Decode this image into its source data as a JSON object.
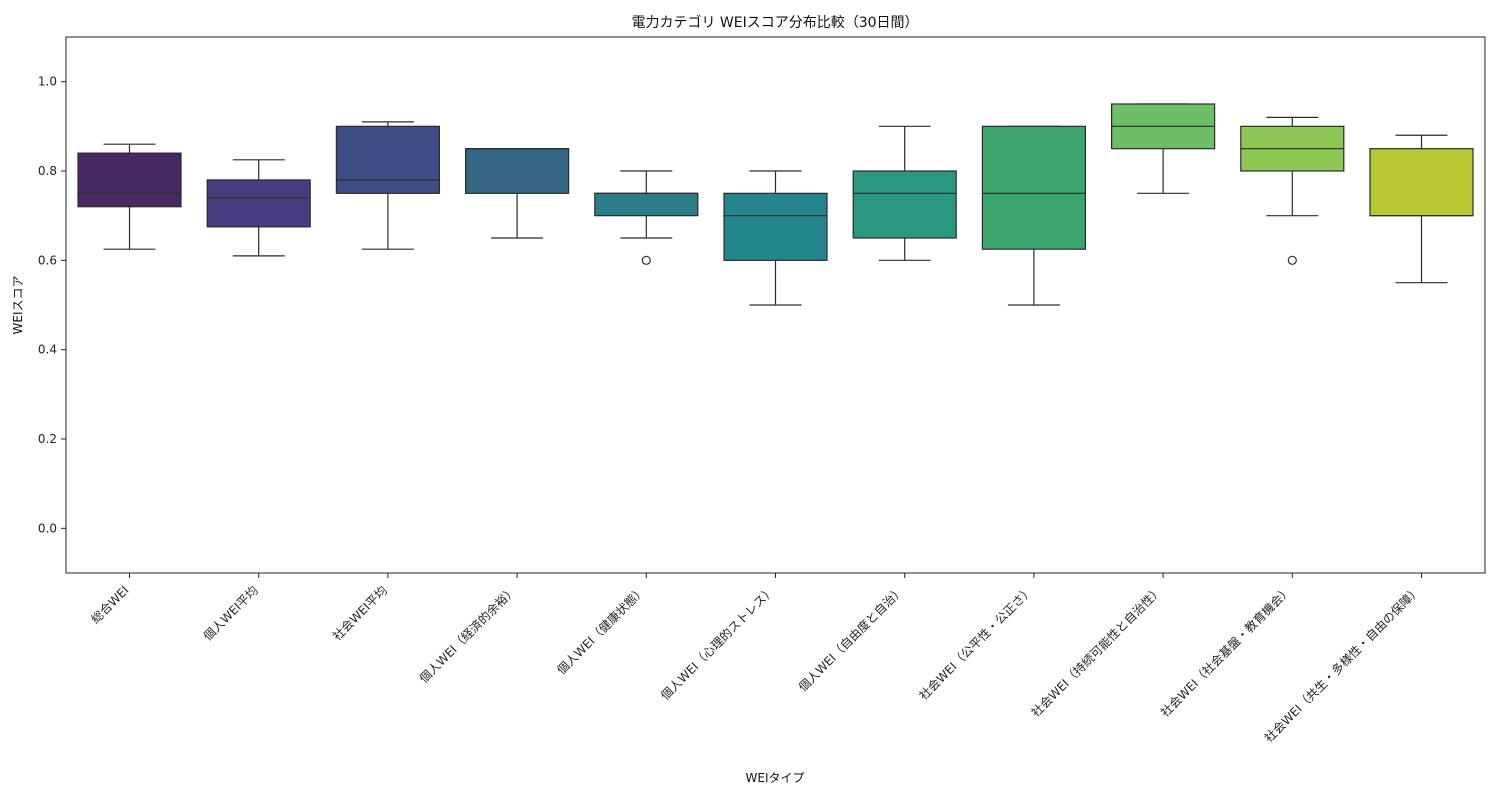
{
  "chart_data": {
    "type": "box",
    "title": "電力カテゴリ WEIスコア分布比較（30日間）",
    "xlabel": "WEIタイプ",
    "ylabel": "WEIスコア",
    "ylim": [
      -0.1,
      1.1
    ],
    "yticks": [
      0.0,
      0.2,
      0.4,
      0.6,
      0.8,
      1.0
    ],
    "ytick_labels": [
      "0.0",
      "0.2",
      "0.4",
      "0.6",
      "0.8",
      "1.0"
    ],
    "grid": false,
    "categories": [
      "総合WEI",
      "個人WEI平均",
      "社会WEI平均",
      "個人WEI（経済的余裕）",
      "個人WEI（健康状態）",
      "個人WEI（心理的ストレス）",
      "個人WEI（自由度と自治）",
      "社会WEI（公平性・公正さ）",
      "社会WEI（持続可能性と自治性）",
      "社会WEI（社会基盤・教育機会）",
      "社会WEI（共生・多様性・自由の保障）"
    ],
    "boxes": [
      {
        "whisker_low": 0.625,
        "q1": 0.72,
        "median": 0.75,
        "q3": 0.84,
        "whisker_high": 0.86,
        "outliers": []
      },
      {
        "whisker_low": 0.61,
        "q1": 0.675,
        "median": 0.74,
        "q3": 0.78,
        "whisker_high": 0.825,
        "outliers": []
      },
      {
        "whisker_low": 0.625,
        "q1": 0.75,
        "median": 0.78,
        "q3": 0.9,
        "whisker_high": 0.91,
        "outliers": []
      },
      {
        "whisker_low": 0.65,
        "q1": 0.75,
        "median": 0.85,
        "q3": 0.85,
        "whisker_high": 0.85,
        "outliers": []
      },
      {
        "whisker_low": 0.65,
        "q1": 0.7,
        "median": 0.75,
        "q3": 0.75,
        "whisker_high": 0.8,
        "outliers": [
          0.6
        ]
      },
      {
        "whisker_low": 0.5,
        "q1": 0.6,
        "median": 0.7,
        "q3": 0.75,
        "whisker_high": 0.8,
        "outliers": []
      },
      {
        "whisker_low": 0.6,
        "q1": 0.65,
        "median": 0.75,
        "q3": 0.8,
        "whisker_high": 0.9,
        "outliers": []
      },
      {
        "whisker_low": 0.5,
        "q1": 0.625,
        "median": 0.75,
        "q3": 0.9,
        "whisker_high": 0.9,
        "outliers": []
      },
      {
        "whisker_low": 0.75,
        "q1": 0.85,
        "median": 0.9,
        "q3": 0.95,
        "whisker_high": 0.95,
        "outliers": []
      },
      {
        "whisker_low": 0.7,
        "q1": 0.8,
        "median": 0.85,
        "q3": 0.9,
        "whisker_high": 0.92,
        "outliers": [
          0.6
        ]
      },
      {
        "whisker_low": 0.55,
        "q1": 0.7,
        "median": 0.7,
        "q3": 0.85,
        "whisker_high": 0.88,
        "outliers": []
      }
    ],
    "colors": [
      "#472a64",
      "#463c7f",
      "#3e4e84",
      "#366685",
      "#2c7c8a",
      "#25858c",
      "#2a9880",
      "#3ba56d",
      "#6cbf66",
      "#8ec854",
      "#b7c832"
    ]
  }
}
